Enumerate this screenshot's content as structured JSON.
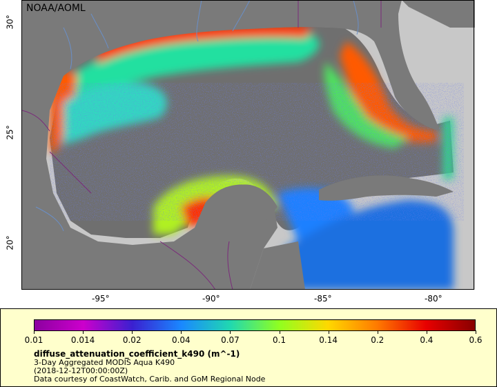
{
  "map": {
    "credit": "NOAA/AOML",
    "lat_labels": [
      "30°",
      "25°",
      "20°"
    ],
    "lon_labels": [
      "-95°",
      "-90°",
      "-85°",
      "-80°"
    ],
    "colors": {
      "land": "#7a7a7a",
      "nodata": "#c8c8c8",
      "rivers": "#6a8fc8",
      "borders": "#7a2a7a"
    }
  },
  "legend": {
    "ticks": [
      "0.01",
      "0.014",
      "0.02",
      "0.04",
      "0.07",
      "0.1",
      "0.14",
      "0.2",
      "0.4",
      "0.6"
    ],
    "colors": [
      "#8c00a0",
      "#cc00cc",
      "#3a20d0",
      "#1a88ff",
      "#20d8b0",
      "#90ff20",
      "#ffd800",
      "#ff7a00",
      "#e80000",
      "#880000"
    ],
    "title": "diffuse_attenuation_coefficient_k490 (m^-1)",
    "line1": "3-Day Aggregated MODIS Aqua K490",
    "line2": "(2018-12-12T00:00:00Z)",
    "line3": "Data courtesy of CoastWatch, Carib. and GoM Regional Node"
  }
}
